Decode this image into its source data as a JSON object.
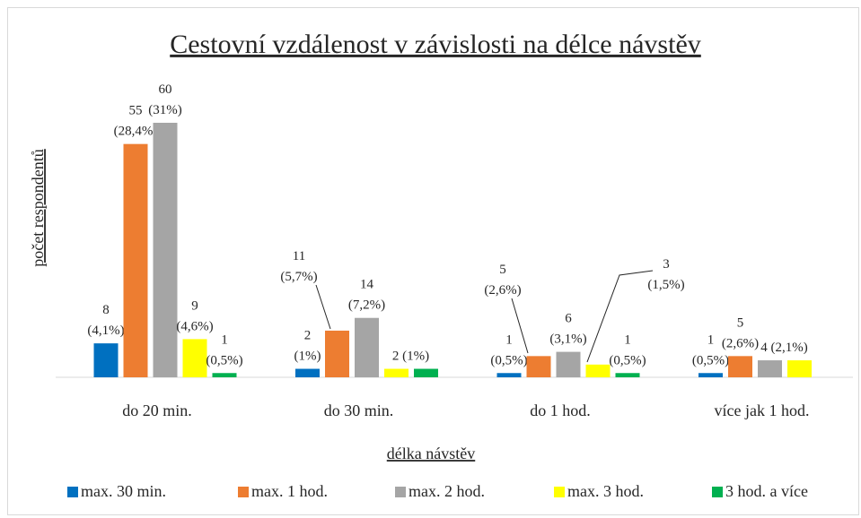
{
  "chart_data": {
    "type": "bar",
    "title": "Cestovní vzdálenost v závislosti na délce návstěv",
    "x_label": "délka návstěv",
    "y_label": "počet respondentů",
    "categories": [
      "do 20 min.",
      "do 30 min.",
      "do 1 hod.",
      "více jak 1 hod."
    ],
    "ylim": [
      0,
      60
    ],
    "legend": "bottom",
    "series": [
      {
        "name": "max. 30 min.",
        "color": "#0070c0",
        "values": [
          8,
          2,
          1,
          1
        ],
        "value_labels": [
          "8\n(4,1%)",
          "2\n(1%)",
          "1\n(0,5%)",
          "1\n(0,5%)"
        ]
      },
      {
        "name": "max. 1 hod.",
        "color": "#ed7d31",
        "values": [
          55,
          11,
          5,
          5
        ],
        "value_labels": [
          "55\n(28,4%)",
          "11\n(5,7%)",
          "5\n(2,6%)",
          "5\n(2,6%)"
        ]
      },
      {
        "name": "max. 2 hod.",
        "color": "#a5a5a5",
        "values": [
          60,
          14,
          6,
          4
        ],
        "value_labels": [
          "60\n(31%)",
          "14\n(7,2%)",
          "6\n(3,1%)",
          "4 (2,1%)"
        ]
      },
      {
        "name": "max. 3 hod.",
        "color": "#ffff00",
        "values": [
          9,
          2,
          3,
          4
        ],
        "value_labels": [
          "9\n(4,6%)",
          "2 (1%)",
          "3\n(1,5%)",
          null
        ]
      },
      {
        "name": "3 hod. a více",
        "color": "#00b050",
        "values": [
          1,
          2,
          1,
          0
        ],
        "value_labels": [
          "1\n(0,5%)",
          null,
          "1\n(0,5%)",
          null
        ]
      }
    ]
  }
}
